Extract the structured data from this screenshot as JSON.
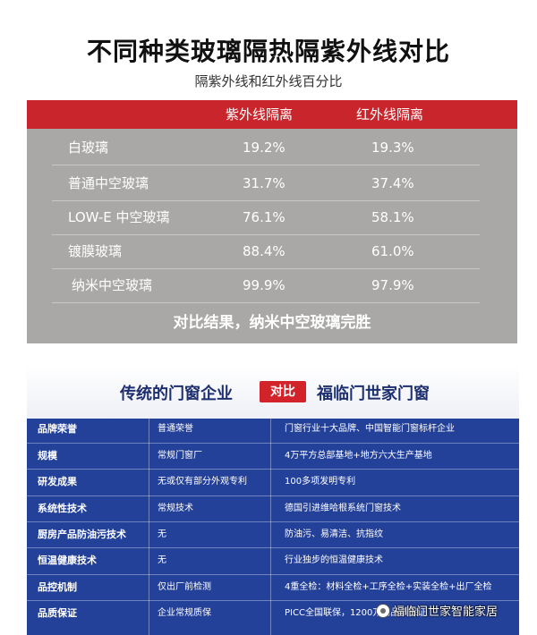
{
  "title": "不同种类玻璃隔热隔紫外线对比",
  "subtitle": "隔紫外线和红外线百分比",
  "glass_table": {
    "headers": [
      "紫外线隔离",
      "红外线隔离"
    ],
    "rows": [
      {
        "name": "白玻璃",
        "uv": "19.2%",
        "ir": "19.3%"
      },
      {
        "name": "普通中空玻璃",
        "uv": "31.7%",
        "ir": "37.4%"
      },
      {
        "name": "LOW-E 中空玻璃",
        "uv": "76.1%",
        "ir": "58.1%"
      },
      {
        "name": "镀膜玻璃",
        "uv": "88.4%",
        "ir": "61.0%"
      },
      {
        "name": "纳米中空玻璃",
        "uv": "99.9%",
        "ir": "97.9%"
      }
    ],
    "result": "对比结果，纳米中空玻璃完胜"
  },
  "compare_table": {
    "left_title": "传统的门窗企业",
    "badge": "对比",
    "right_title": "福临门世家门窗",
    "rows": [
      {
        "item": "品牌荣誉",
        "traditional": "普通荣誉",
        "brand": "门窗行业十大品牌、中国智能门窗标杆企业"
      },
      {
        "item": "规模",
        "traditional": "常规门窗厂",
        "brand": "4万平方总部基地+地方六大生产基地"
      },
      {
        "item": "研发成果",
        "traditional": "无或仅有部分外观专利",
        "brand": "100多项发明专利"
      },
      {
        "item": "系统性技术",
        "traditional": "常规技术",
        "brand": "德国引进维哈根系统门窗技术"
      },
      {
        "item": "厨房产品防油污技术",
        "traditional": "无",
        "brand": "防油污、易清洁、抗指纹"
      },
      {
        "item": "恒温健康技术",
        "traditional": "无",
        "brand": "行业独步的恒温健康技术"
      },
      {
        "item": "品控机制",
        "traditional": "仅出厂前检测",
        "brand": "4重全检：材料全检+工序全检+实装全检+出厂全检"
      },
      {
        "item": "品质保证",
        "traditional": "企业常规质保",
        "brand": "PICC全国联保，1200万的品质保证"
      }
    ]
  },
  "watermark": "福临门世家智能家居"
}
